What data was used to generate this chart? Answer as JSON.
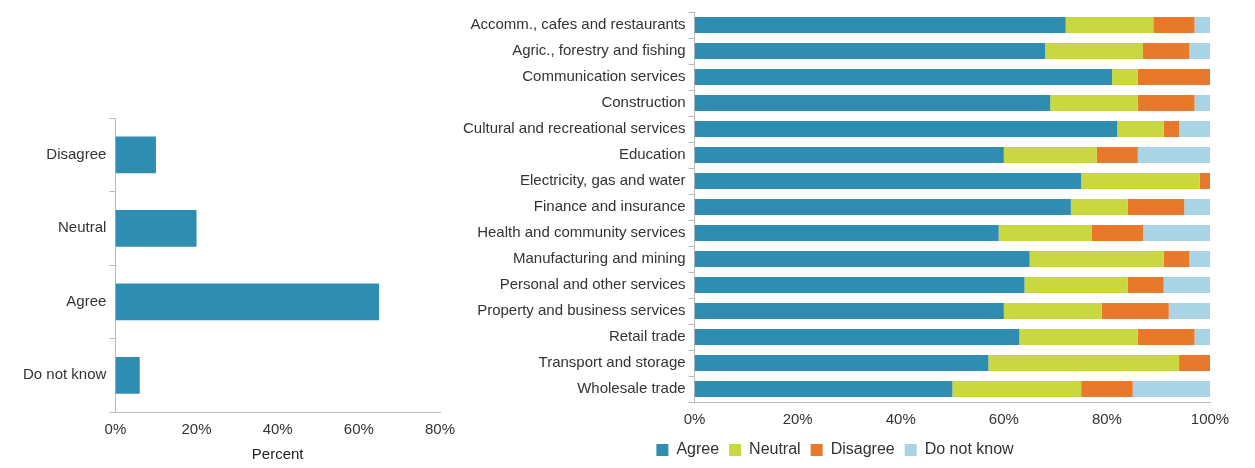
{
  "chart_data": [
    {
      "type": "bar",
      "orientation": "horizontal",
      "categories": [
        "Disagree",
        "Neutral",
        "Agree",
        "Do not know"
      ],
      "values": [
        10,
        20,
        65,
        6
      ],
      "color": "#2e8db0",
      "xlim": [
        0,
        80
      ],
      "xticks": [
        {
          "value": 0,
          "label": "0%"
        },
        {
          "value": 20,
          "label": "20%"
        },
        {
          "value": 40,
          "label": "40%"
        },
        {
          "value": 60,
          "label": "60%"
        },
        {
          "value": 80,
          "label": "80%"
        }
      ],
      "xlabel": "Percent",
      "grid": false,
      "legend": false
    },
    {
      "type": "bar",
      "orientation": "horizontal",
      "stacked": true,
      "categories": [
        "Accomm., cafes and restaurants",
        "Agric., forestry and fishing",
        "Communication services",
        "Construction",
        "Cultural and recreational services",
        "Education",
        "Electricity, gas and water",
        "Finance and insurance",
        "Health and community services",
        "Manufacturing and mining",
        "Personal and other services",
        "Property and business services",
        "Retail trade",
        "Transport and storage",
        "Wholesale trade"
      ],
      "series": [
        {
          "name": "Agree",
          "color": "#2e8db0",
          "values": [
            72,
            68,
            81,
            69,
            82,
            60,
            75,
            73,
            59,
            65,
            64,
            60,
            63,
            57,
            50
          ]
        },
        {
          "name": "Neutral",
          "color": "#c9d740",
          "values": [
            17,
            19,
            5,
            17,
            9,
            18,
            23,
            11,
            18,
            26,
            20,
            19,
            23,
            37,
            25
          ]
        },
        {
          "name": "Disagree",
          "color": "#e8792a",
          "values": [
            8,
            9,
            14,
            11,
            3,
            8,
            2,
            11,
            10,
            5,
            7,
            13,
            11,
            6,
            10
          ]
        },
        {
          "name": "Do not know",
          "color": "#a8d4e6",
          "values": [
            3,
            4,
            0,
            3,
            6,
            14,
            0,
            5,
            13,
            4,
            9,
            8,
            3,
            0,
            15
          ]
        }
      ],
      "xlim": [
        0,
        100
      ],
      "xticks": [
        {
          "value": 0,
          "label": "0%"
        },
        {
          "value": 20,
          "label": "20%"
        },
        {
          "value": 40,
          "label": "40%"
        },
        {
          "value": 60,
          "label": "60%"
        },
        {
          "value": 80,
          "label": "80%"
        },
        {
          "value": 100,
          "label": "100%"
        }
      ],
      "grid": false,
      "legend": "bottom"
    }
  ]
}
